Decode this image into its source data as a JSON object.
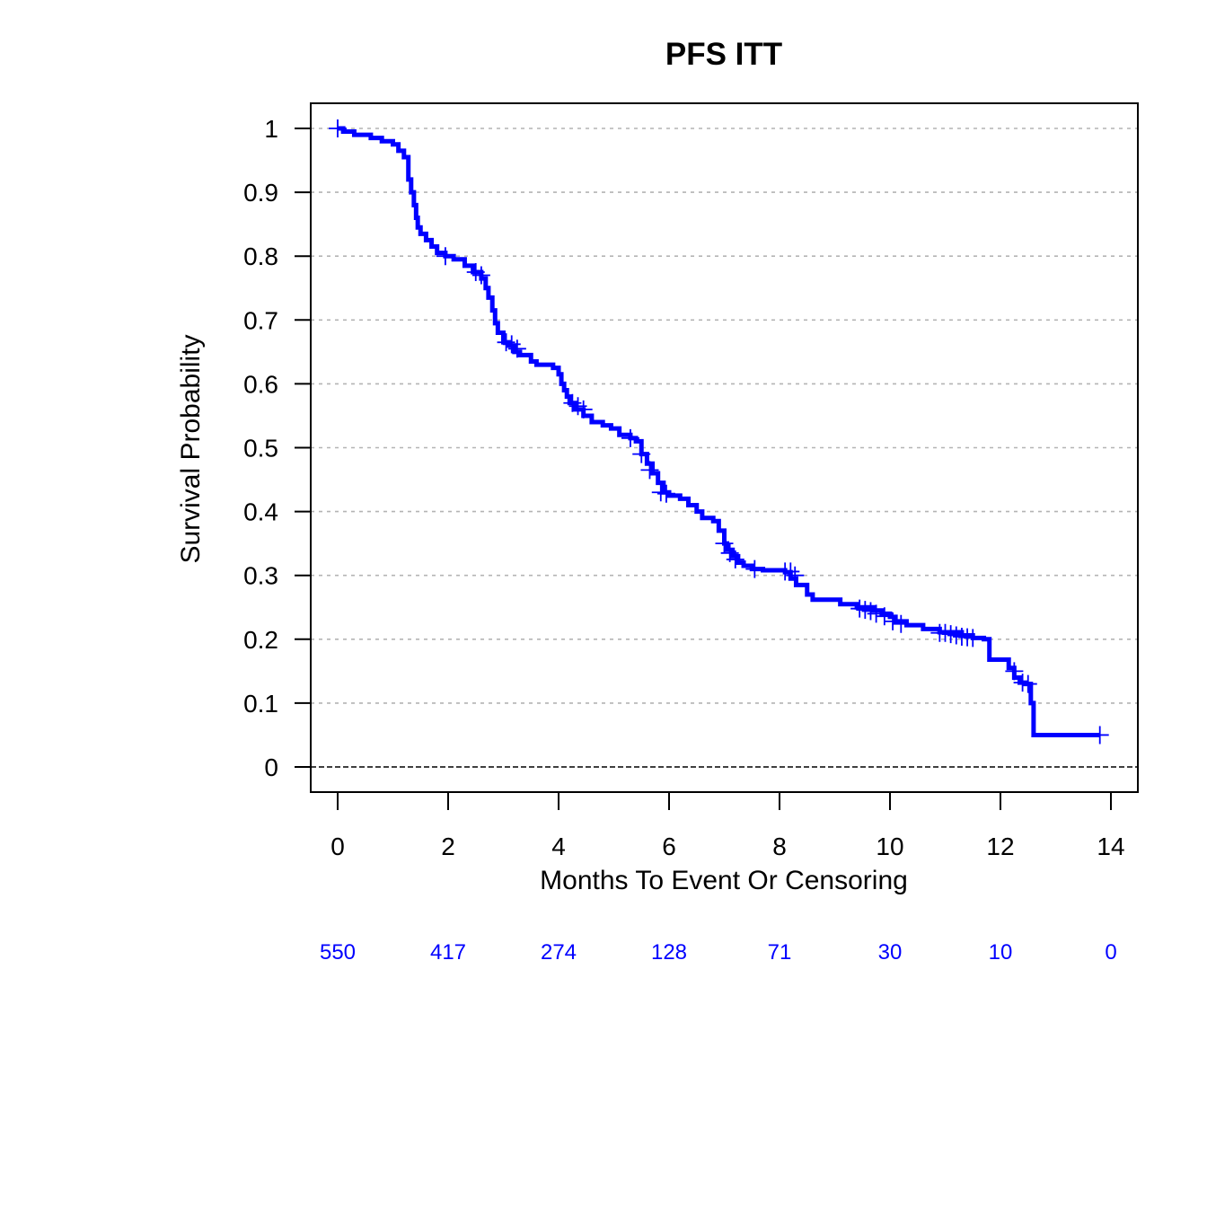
{
  "chart_data": {
    "type": "line",
    "title": "PFS ITT",
    "xlabel": "Months To Event Or Censoring",
    "ylabel": "Survival Probability",
    "xlim": [
      0,
      14
    ],
    "ylim": [
      0,
      1
    ],
    "x_ticks": [
      "0",
      "2",
      "4",
      "6",
      "8",
      "10",
      "12",
      "14"
    ],
    "y_ticks": [
      "0",
      "0.1",
      "0.2",
      "0.3",
      "0.4",
      "0.5",
      "0.6",
      "0.7",
      "0.8",
      "0.9",
      "1"
    ],
    "grid": "horizontal dotted",
    "line_color": "#0000ff",
    "risk_color": "#0000ff",
    "reference_line_y": 0,
    "series": [
      {
        "x": [
          0,
          0.1,
          0.3,
          0.6,
          0.8,
          1.0,
          1.1,
          1.2,
          1.28,
          1.33,
          1.38,
          1.42,
          1.45,
          1.5,
          1.6,
          1.7,
          1.8,
          1.95,
          2.1,
          2.3,
          2.45,
          2.6,
          2.68,
          2.73,
          2.8,
          2.85,
          2.9,
          3.0,
          3.1,
          3.2,
          3.3,
          3.5,
          3.6,
          3.9,
          4.0,
          4.05,
          4.1,
          4.15,
          4.2,
          4.3,
          4.45,
          4.6,
          4.8,
          4.95,
          5.1,
          5.3,
          5.4,
          5.5,
          5.6,
          5.7,
          5.8,
          5.9,
          6.0,
          6.2,
          6.35,
          6.5,
          6.6,
          6.8,
          6.9,
          7.0,
          7.05,
          7.15,
          7.25,
          7.35,
          7.5,
          7.7,
          8.1,
          8.2,
          8.3,
          8.5,
          8.6,
          8.8,
          9.1,
          9.4,
          9.7,
          9.85,
          10.0,
          10.1,
          10.3,
          10.6,
          10.9,
          11.3,
          11.5,
          11.7,
          11.8,
          12.0,
          12.15,
          12.25,
          12.35,
          12.45,
          12.55,
          12.6,
          13.8
        ],
        "y": [
          1.0,
          0.995,
          0.99,
          0.985,
          0.98,
          0.975,
          0.965,
          0.955,
          0.92,
          0.9,
          0.88,
          0.86,
          0.845,
          0.835,
          0.825,
          0.815,
          0.805,
          0.8,
          0.795,
          0.785,
          0.775,
          0.765,
          0.75,
          0.735,
          0.715,
          0.695,
          0.68,
          0.665,
          0.66,
          0.65,
          0.645,
          0.635,
          0.63,
          0.625,
          0.615,
          0.6,
          0.59,
          0.58,
          0.57,
          0.56,
          0.55,
          0.54,
          0.535,
          0.53,
          0.52,
          0.515,
          0.51,
          0.49,
          0.475,
          0.46,
          0.445,
          0.43,
          0.425,
          0.42,
          0.41,
          0.4,
          0.39,
          0.385,
          0.37,
          0.35,
          0.34,
          0.33,
          0.32,
          0.315,
          0.31,
          0.308,
          0.305,
          0.295,
          0.285,
          0.27,
          0.262,
          0.262,
          0.255,
          0.25,
          0.245,
          0.24,
          0.235,
          0.228,
          0.222,
          0.216,
          0.211,
          0.206,
          0.202,
          0.2,
          0.168,
          0.168,
          0.155,
          0.14,
          0.132,
          0.13,
          0.1,
          0.05,
          0.05
        ]
      }
    ],
    "censor_marks": {
      "x": [
        0.0,
        1.95,
        2.5,
        2.6,
        3.05,
        3.15,
        3.25,
        4.25,
        4.35,
        4.45,
        5.3,
        5.5,
        5.65,
        5.85,
        5.95,
        7.0,
        7.1,
        7.2,
        7.55,
        8.1,
        8.2,
        8.28,
        9.45,
        9.55,
        9.65,
        9.75,
        9.9,
        10.05,
        10.2,
        10.9,
        11.0,
        11.1,
        11.2,
        11.3,
        11.4,
        11.5,
        12.25,
        12.4,
        12.5,
        13.8
      ],
      "y": [
        1.0,
        0.8,
        0.775,
        0.77,
        0.665,
        0.662,
        0.655,
        0.57,
        0.565,
        0.56,
        0.515,
        0.49,
        0.465,
        0.43,
        0.428,
        0.35,
        0.335,
        0.325,
        0.31,
        0.306,
        0.306,
        0.3,
        0.248,
        0.246,
        0.244,
        0.24,
        0.236,
        0.228,
        0.224,
        0.21,
        0.21,
        0.208,
        0.206,
        0.204,
        0.203,
        0.202,
        0.15,
        0.132,
        0.13,
        0.05
      ]
    },
    "at_risk": {
      "x": [
        0,
        2,
        4,
        6,
        8,
        10,
        12,
        14
      ],
      "labels": [
        "550",
        "417",
        "274",
        "128",
        "71",
        "30",
        "10",
        "0"
      ]
    }
  }
}
